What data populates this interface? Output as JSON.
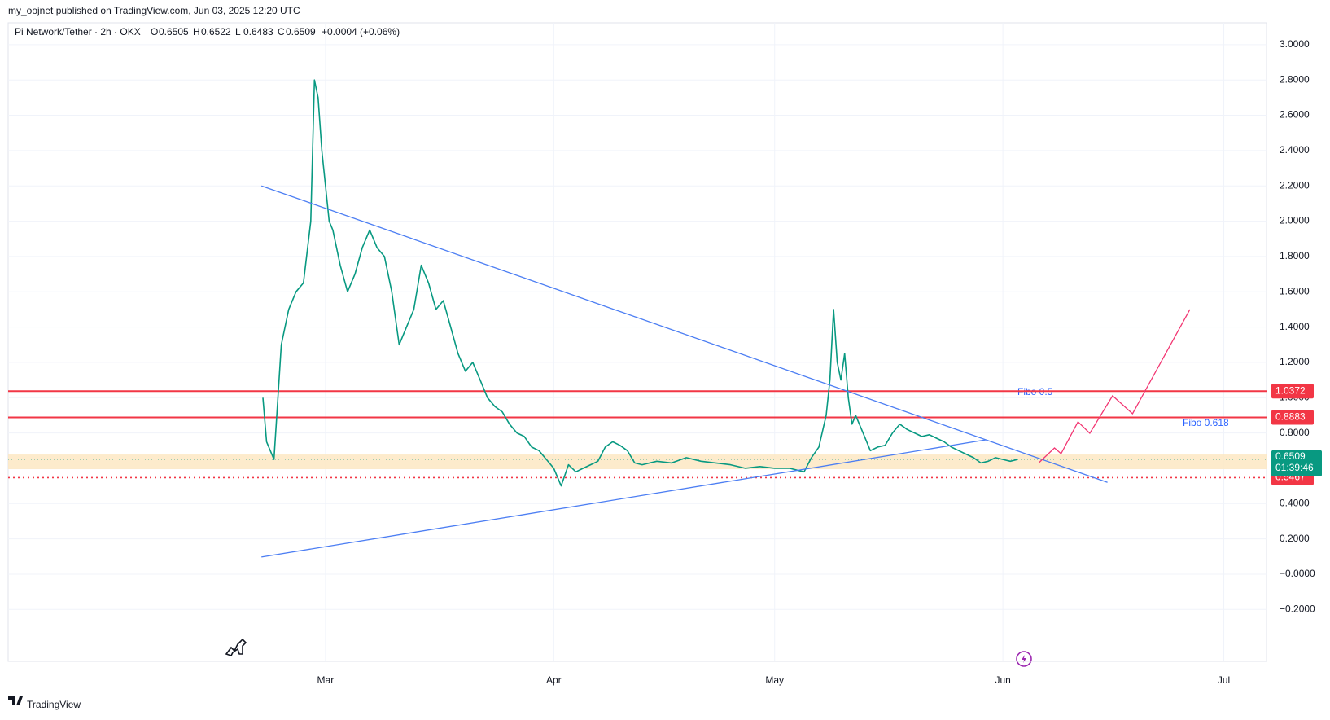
{
  "chart_data": {
    "type": "line",
    "header": "my_oojnet published on TradingView.com, Jun 03, 2025 12:20 UTC",
    "symbol": "Pi Network/Tether · 2h · OKX",
    "ohlc": [
      {
        "label": "O",
        "value": 0.6505
      },
      {
        "label": "H",
        "value": 0.6522
      },
      {
        "label": "L",
        "value": 0.6483
      },
      {
        "label": "C",
        "value": 0.6509
      }
    ],
    "change": "+0.0004 (+0.06%)",
    "brand": "TradingView",
    "xlim": [
      15.9,
      186.8
    ],
    "xticks": [
      {
        "value": 59,
        "label": "Mar"
      },
      {
        "value": 90,
        "label": "Apr"
      },
      {
        "value": 120,
        "label": "May"
      },
      {
        "value": 151,
        "label": "Jun"
      },
      {
        "value": 181,
        "label": "Jul"
      }
    ],
    "ylim": [
      -0.494,
      3.124
    ],
    "yticks": [
      {
        "value": -0.2,
        "label": "−0.2000"
      },
      {
        "value": 0,
        "label": "−0.0000"
      },
      {
        "value": 0.2,
        "label": "0.2000"
      },
      {
        "value": 0.4,
        "label": "0.4000"
      },
      {
        "value": 0.6,
        "label": "0.6000"
      },
      {
        "value": 0.8,
        "label": "0.8000"
      },
      {
        "value": 1.0,
        "label": "1.0000"
      },
      {
        "value": 1.2,
        "label": "1.2000"
      },
      {
        "value": 1.4,
        "label": "1.4000"
      },
      {
        "value": 1.6,
        "label": "1.6000"
      },
      {
        "value": 1.8,
        "label": "1.8000"
      },
      {
        "value": 2.0,
        "label": "2.0000"
      },
      {
        "value": 2.2,
        "label": "2.2000"
      },
      {
        "value": 2.4,
        "label": "2.4000"
      },
      {
        "value": 2.6,
        "label": "2.6000"
      },
      {
        "value": 2.8,
        "label": "2.8000"
      },
      {
        "value": 3.0,
        "label": "3.0000"
      }
    ],
    "grid": true,
    "series": [
      {
        "color": "#089981",
        "x": [
          50.5,
          51,
          52,
          53,
          54,
          55,
          56,
          57,
          57.5,
          58,
          58.5,
          59,
          59.5,
          60,
          61,
          62,
          63,
          64,
          65,
          66,
          67,
          68,
          69,
          70,
          71,
          72,
          73,
          74,
          75,
          76,
          77,
          78,
          79,
          80,
          81,
          82,
          83,
          84,
          85,
          86,
          87,
          88,
          89,
          90,
          91,
          92,
          93,
          94,
          95,
          96,
          97,
          98,
          99,
          100,
          101,
          102,
          104,
          106,
          108,
          110,
          112,
          114,
          116,
          118,
          120,
          122,
          124,
          125,
          126,
          127,
          127.5,
          128,
          128.5,
          129,
          129.5,
          130,
          130.5,
          131,
          132,
          133,
          134,
          135,
          136,
          137,
          138,
          139,
          140,
          141,
          142,
          143,
          144,
          145,
          146,
          147,
          148,
          149,
          150,
          151,
          152,
          153
        ],
        "values": [
          1.0,
          0.75,
          0.65,
          1.3,
          1.5,
          1.6,
          1.65,
          2.0,
          2.8,
          2.7,
          2.4,
          2.2,
          2.0,
          1.95,
          1.75,
          1.6,
          1.7,
          1.85,
          1.95,
          1.85,
          1.8,
          1.6,
          1.3,
          1.4,
          1.5,
          1.75,
          1.65,
          1.5,
          1.55,
          1.4,
          1.25,
          1.15,
          1.2,
          1.1,
          1.0,
          0.95,
          0.92,
          0.85,
          0.8,
          0.78,
          0.72,
          0.7,
          0.65,
          0.6,
          0.5,
          0.62,
          0.58,
          0.6,
          0.62,
          0.64,
          0.72,
          0.75,
          0.73,
          0.7,
          0.63,
          0.62,
          0.64,
          0.63,
          0.66,
          0.64,
          0.63,
          0.62,
          0.6,
          0.61,
          0.6,
          0.6,
          0.58,
          0.66,
          0.72,
          0.9,
          1.1,
          1.5,
          1.2,
          1.1,
          1.25,
          1.0,
          0.85,
          0.9,
          0.8,
          0.7,
          0.72,
          0.73,
          0.8,
          0.85,
          0.82,
          0.8,
          0.78,
          0.79,
          0.77,
          0.75,
          0.72,
          0.7,
          0.68,
          0.66,
          0.63,
          0.64,
          0.66,
          0.65,
          0.64,
          0.65
        ]
      }
    ],
    "trendlines": [
      {
        "color": "#4c7ef3",
        "x": [
          50.3,
          165.2
        ],
        "values": [
          2.2,
          0.52
        ]
      },
      {
        "color": "#4c7ef3",
        "x": [
          50.3,
          148.7
        ],
        "values": [
          0.097,
          0.761
        ]
      },
      {
        "color": "#f23672",
        "x": [
          155.9,
          158.0,
          158.9,
          161.2,
          162.8,
          165.9,
          168.6,
          176.4
        ],
        "values": [
          0.632,
          0.715,
          0.683,
          0.863,
          0.798,
          1.011,
          0.909,
          1.5
        ]
      }
    ],
    "zone": [
      0.595,
      0.678
    ],
    "zone_color": "#fde7c3",
    "levels": [
      {
        "value": 1.0372,
        "color": "#f23645",
        "style": "solid"
      },
      {
        "value": 0.8883,
        "color": "#f23645",
        "style": "solid"
      },
      {
        "value": 0.5467,
        "color": "#f23645",
        "style": "dotted"
      }
    ],
    "annotations": [
      "Fibo 0.5",
      "Fibo 0.618"
    ],
    "annotation_color": "#2962ff",
    "last_price": 0.6509,
    "last_color": "#089981",
    "countdown": "01:39:46"
  }
}
